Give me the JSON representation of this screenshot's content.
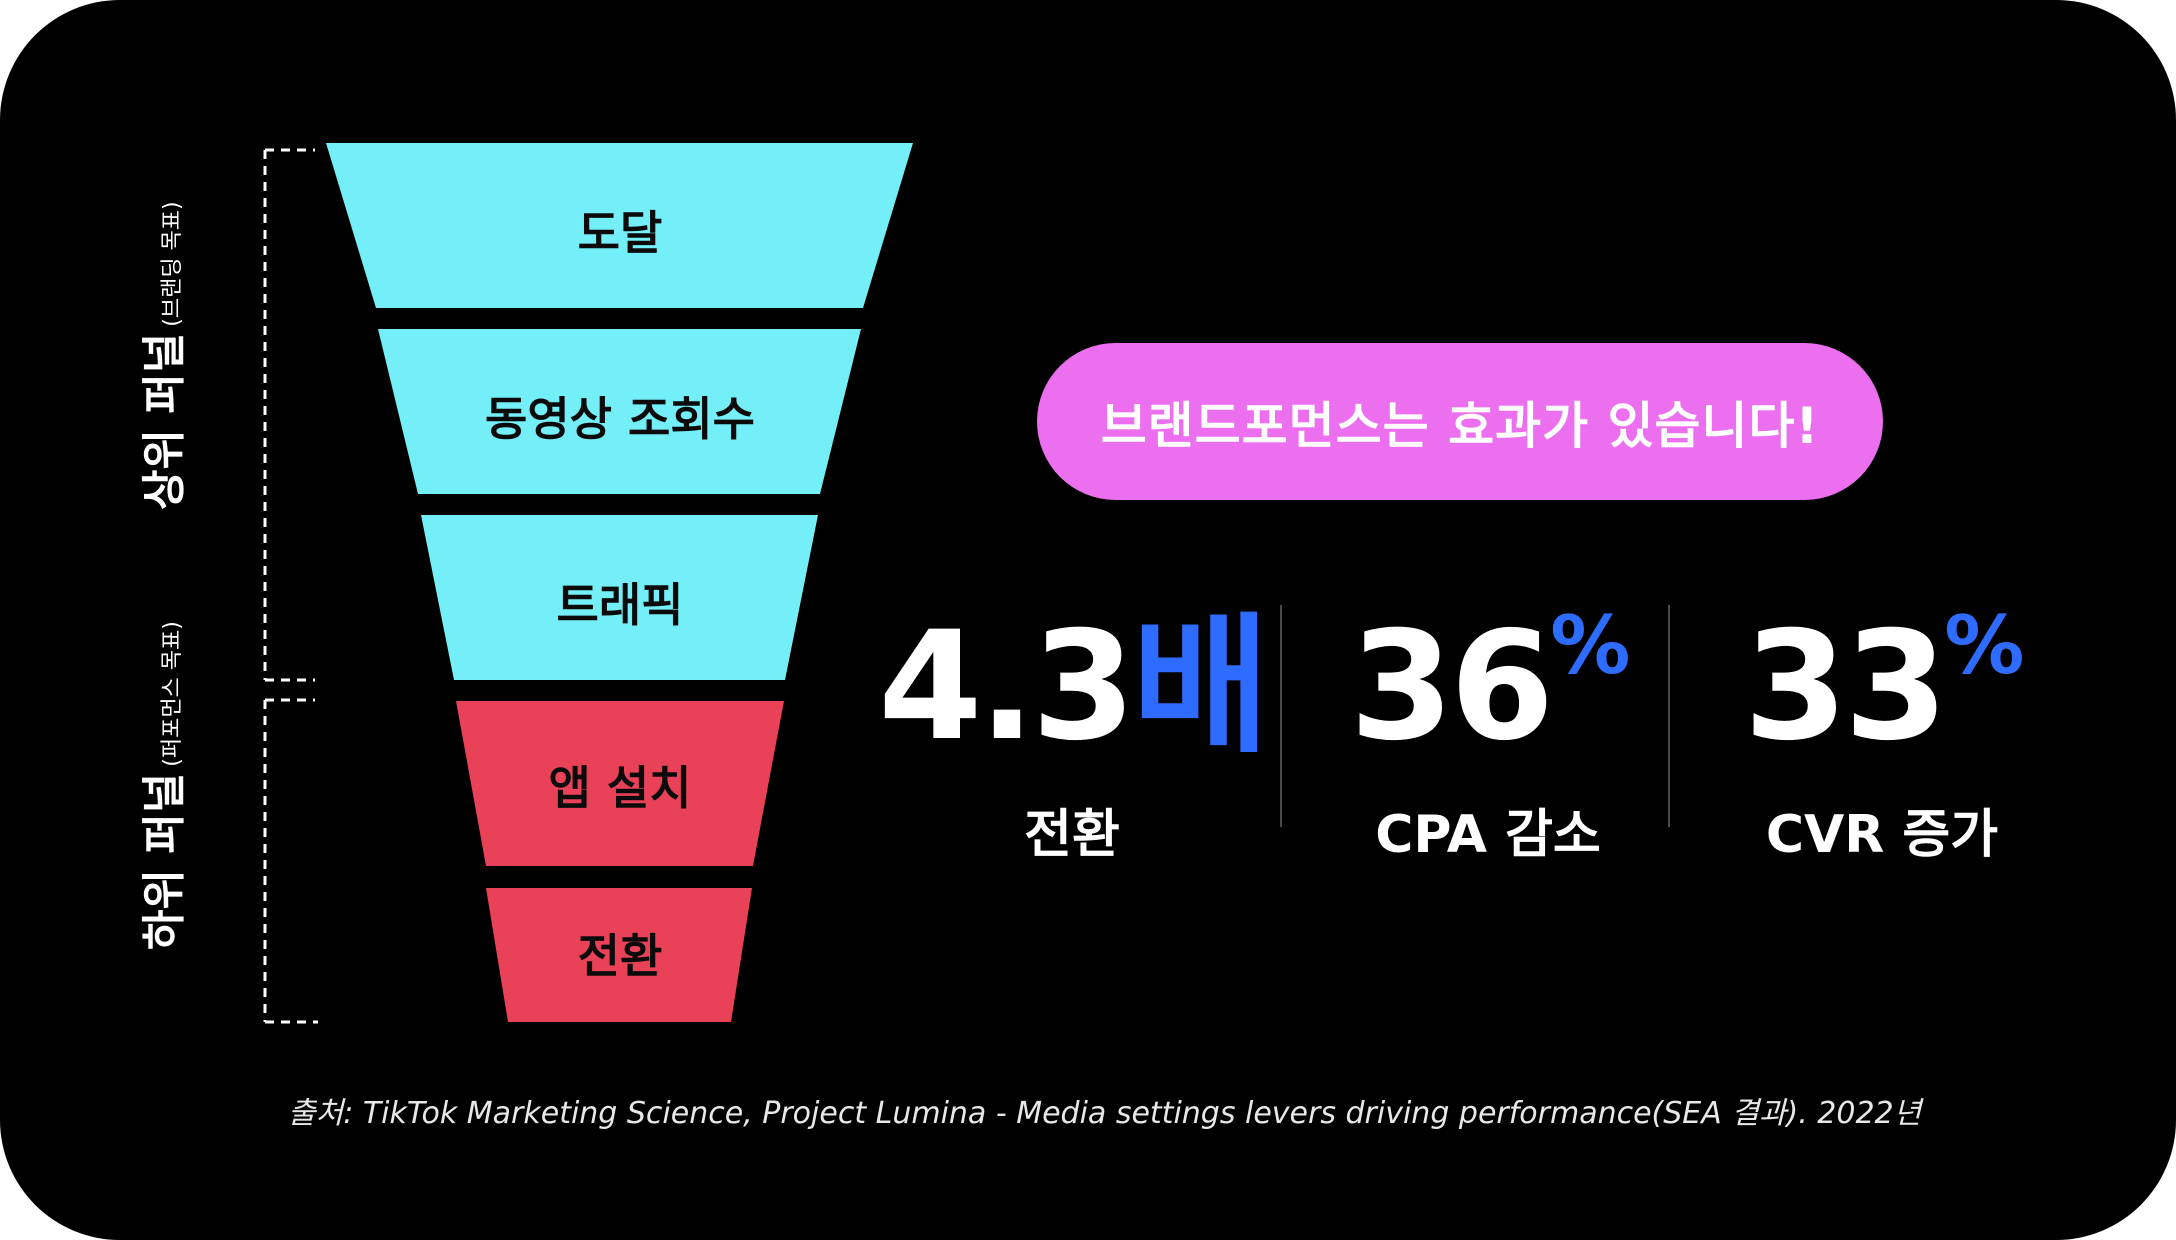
{
  "funnel": {
    "stages": [
      {
        "label": "도달",
        "color": "#74eef7"
      },
      {
        "label": "동영상 조회수",
        "color": "#74eef7"
      },
      {
        "label": "트래픽",
        "color": "#74eef7"
      },
      {
        "label": "앱 설치",
        "color": "#e94258"
      },
      {
        "label": "전환",
        "color": "#e94258"
      }
    ],
    "upper": {
      "title": "상위 퍼널",
      "subtitle": "(브랜딩 목표)"
    },
    "lower": {
      "title": "하위 퍼널",
      "subtitle": "(퍼포먼스 목표)"
    }
  },
  "banner": {
    "text": "브랜드포먼스는 효과가 있습니다!",
    "color": "#ec6ff0"
  },
  "stats": [
    {
      "value": "4.3",
      "unit": "배",
      "caption": "전환"
    },
    {
      "value": "36",
      "unit": "%",
      "caption": "CPA 감소"
    },
    {
      "value": "33",
      "unit": "%",
      "caption": "CVR 증가"
    }
  ],
  "accent_color": "#2e6cff",
  "source": "출처: TikTok Marketing Science, Project Lumina - Media settings levers driving performance(SEA 결과). 2022년"
}
